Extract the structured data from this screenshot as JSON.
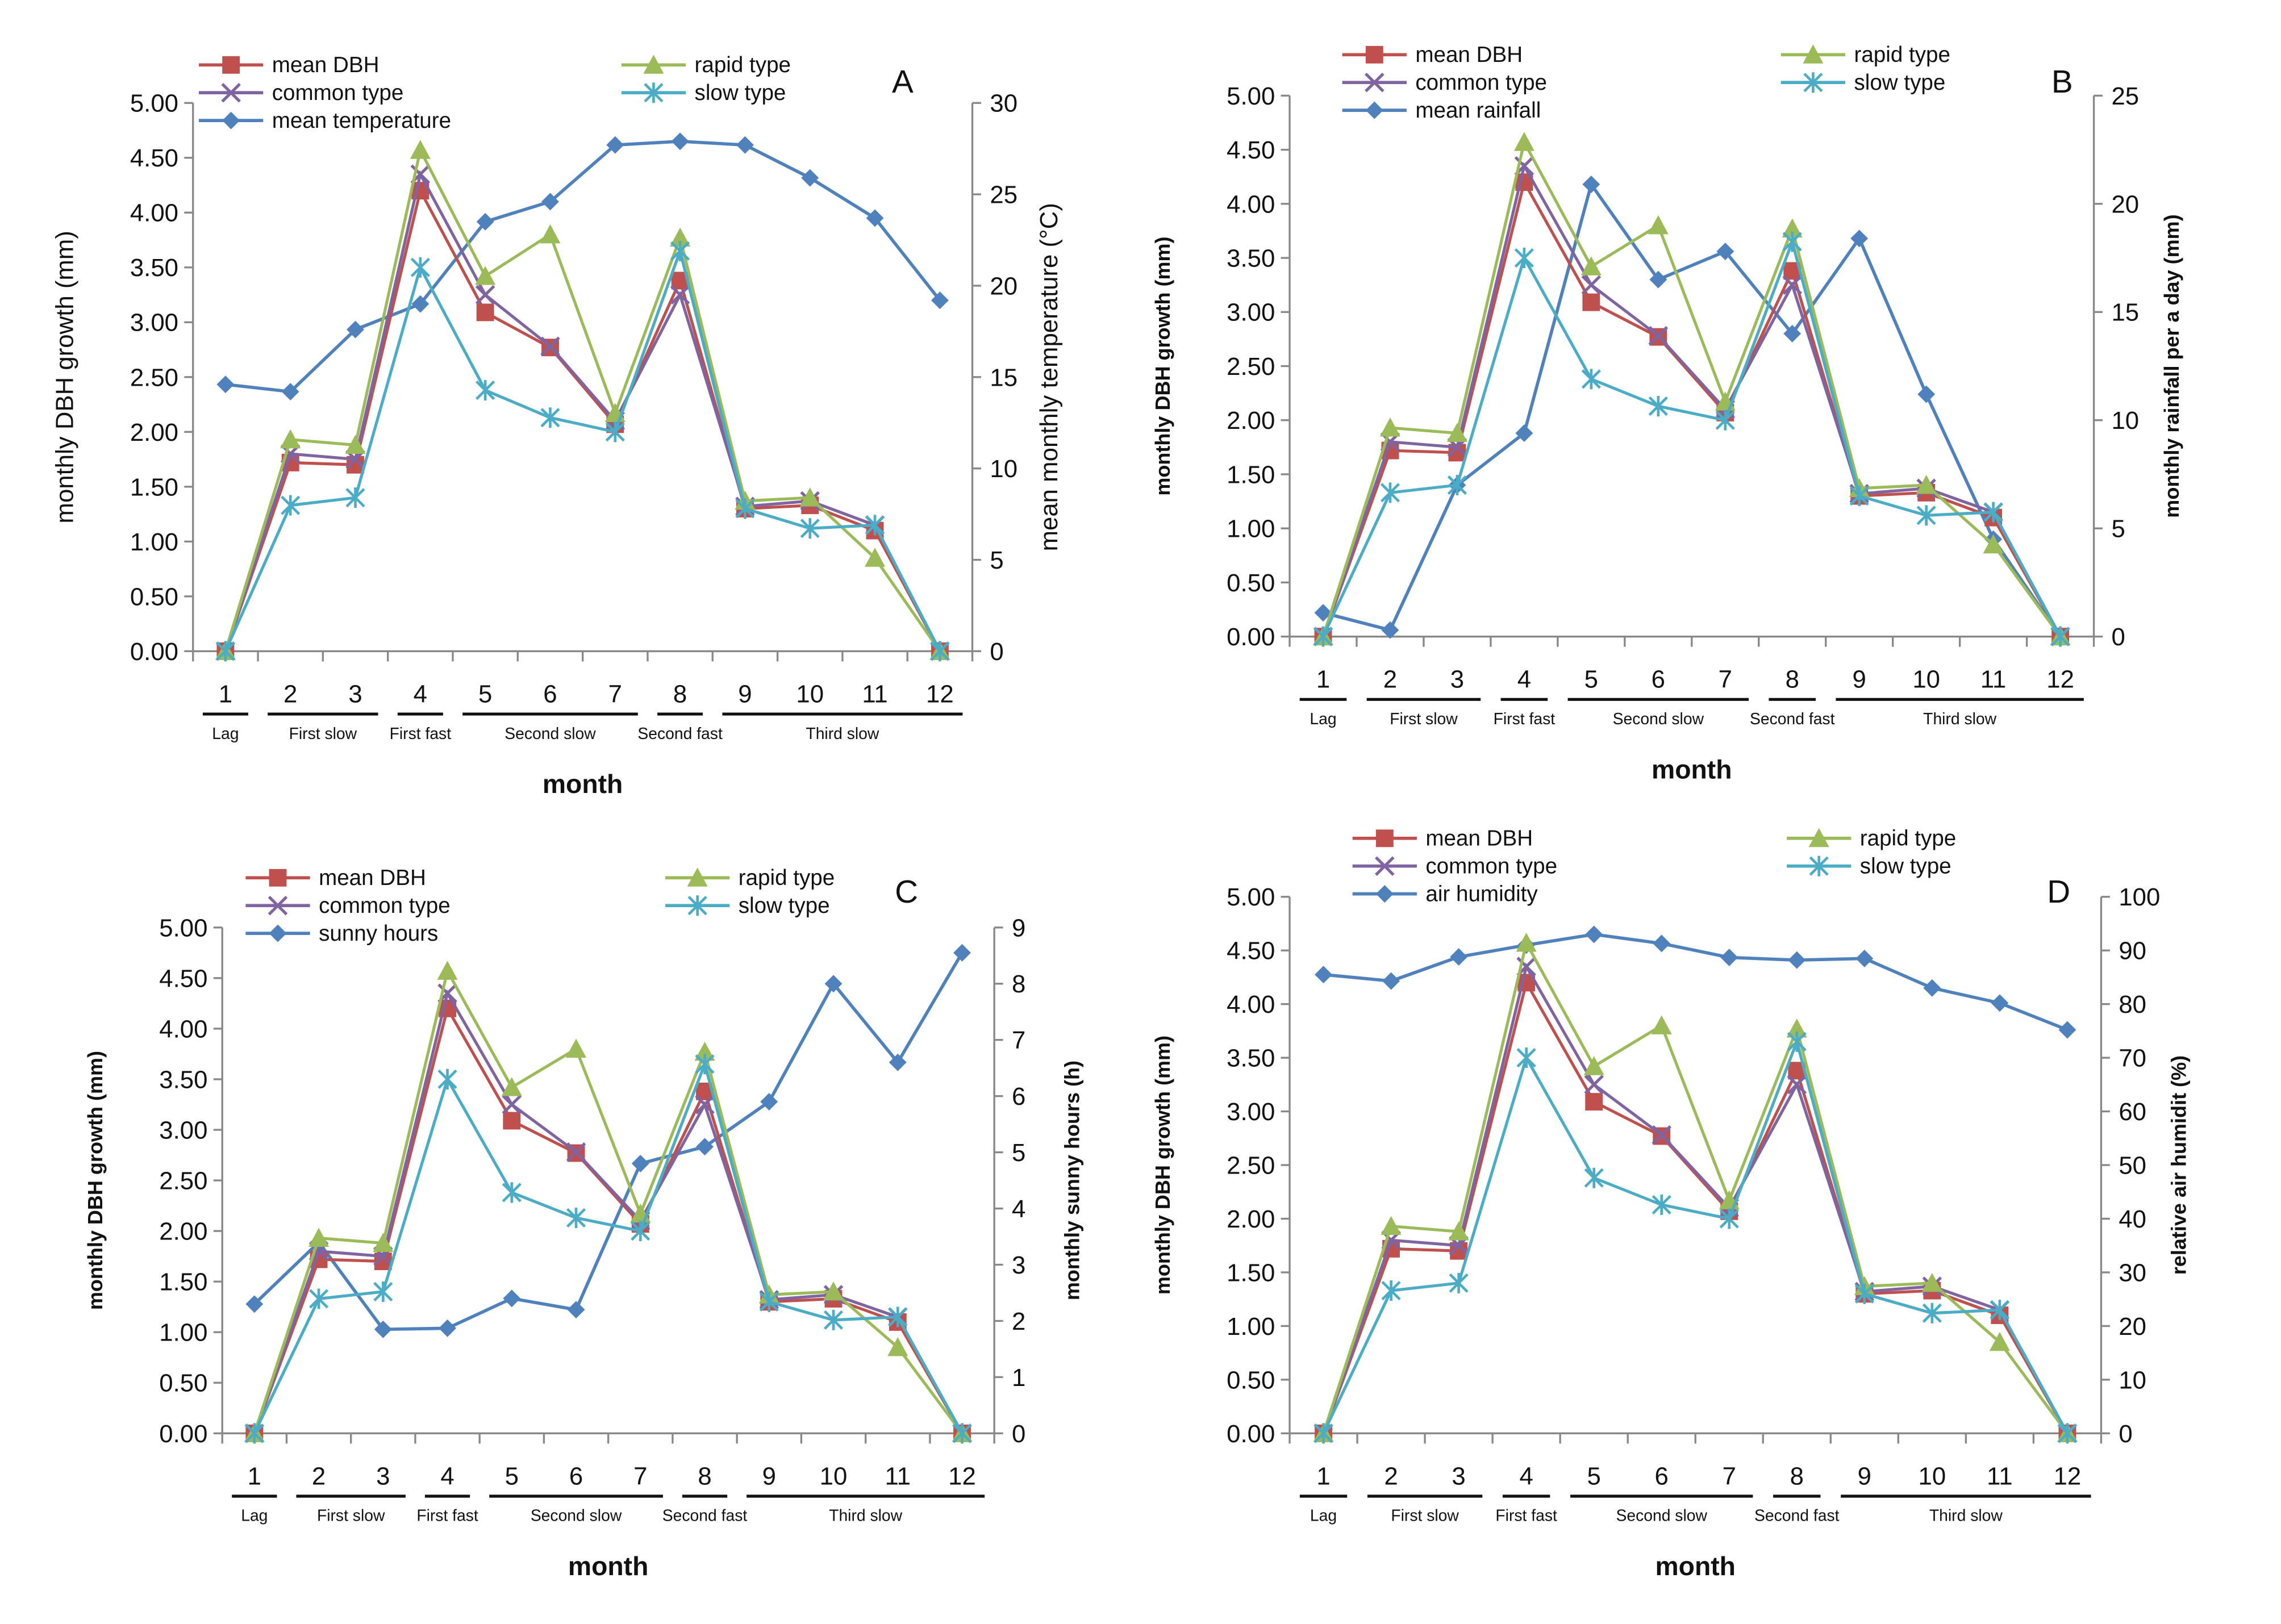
{
  "chart_data": [
    {
      "panel": "A",
      "type": "line",
      "ylabel": "monthly DBH growth (mm)",
      "y2label": "mean monthly temperature (°C)",
      "xlabel": "month",
      "ylim": [
        0,
        5
      ],
      "y2lim": [
        0,
        30
      ],
      "y2ticks": [
        0,
        5,
        10,
        15,
        20,
        25,
        30
      ],
      "env": {
        "name": "mean temperature",
        "values": [
          14.6,
          14.2,
          17.6,
          19.0,
          23.5,
          24.6,
          27.7,
          27.9,
          27.7,
          25.9,
          23.7,
          19.2
        ]
      }
    },
    {
      "panel": "B",
      "type": "line",
      "ylabel": "monthly DBH growth (mm)",
      "y2label": "monthly rainfall per a day (mm)",
      "xlabel": "month",
      "ylim": [
        0,
        5
      ],
      "y2lim": [
        0,
        25
      ],
      "y2ticks": [
        0,
        5,
        10,
        15,
        20,
        25
      ],
      "env": {
        "name": "mean rainfall",
        "values": [
          1.1,
          0.3,
          7.0,
          9.4,
          20.9,
          16.5,
          17.8,
          14.0,
          18.4,
          11.2,
          4.5,
          0
        ]
      }
    },
    {
      "panel": "C",
      "type": "line",
      "ylabel": "monthly DBH growth (mm)",
      "y2label": "monthly sunny hours (h)",
      "xlabel": "month",
      "ylim": [
        0,
        5
      ],
      "y2lim": [
        0,
        9
      ],
      "y2ticks": [
        0,
        1,
        2,
        3,
        4,
        5,
        6,
        7,
        8,
        9
      ],
      "env": {
        "name": "sunny hours",
        "values": [
          2.3,
          3.4,
          1.85,
          1.87,
          2.4,
          2.2,
          4.8,
          5.1,
          5.9,
          8.0,
          6.6,
          8.55
        ]
      }
    },
    {
      "panel": "D",
      "type": "line",
      "ylabel": "monthly DBH growth (mm)",
      "y2label": "relative air humidit (%)",
      "xlabel": "month",
      "ylim": [
        0,
        5
      ],
      "y2lim": [
        0,
        100
      ],
      "y2ticks": [
        0,
        10,
        20,
        30,
        40,
        50,
        60,
        70,
        80,
        90,
        100
      ],
      "env": {
        "name": "air humidity",
        "values": [
          85.5,
          84.3,
          88.8,
          91.0,
          93.0,
          91.3,
          88.7,
          88.2,
          88.5,
          83.0,
          80.2,
          75.2
        ]
      }
    }
  ],
  "shared": {
    "x": [
      "1",
      "2",
      "3",
      "4",
      "5",
      "6",
      "7",
      "8",
      "9",
      "10",
      "11",
      "12"
    ],
    "yticks": [
      "0.00",
      "0.50",
      "1.00",
      "1.50",
      "2.00",
      "2.50",
      "3.00",
      "3.50",
      "4.00",
      "4.50",
      "5.00"
    ],
    "series": [
      {
        "name": "mean DBH",
        "color": "#c0504d",
        "marker": "square",
        "values": [
          0,
          1.72,
          1.7,
          4.2,
          3.09,
          2.77,
          2.07,
          3.38,
          1.3,
          1.33,
          1.1,
          0
        ]
      },
      {
        "name": "common type",
        "color": "#8064a2",
        "marker": "x",
        "values": [
          0,
          1.8,
          1.75,
          4.35,
          3.25,
          2.78,
          2.1,
          3.25,
          1.32,
          1.37,
          1.15,
          0
        ]
      },
      {
        "name": "rapid type",
        "color": "#9bbb59",
        "marker": "triangle",
        "values": [
          0,
          1.93,
          1.88,
          4.57,
          3.42,
          3.8,
          2.17,
          3.77,
          1.37,
          1.4,
          0.85,
          0
        ]
      },
      {
        "name": "slow type",
        "color": "#4bacc6",
        "marker": "star",
        "values": [
          0,
          1.33,
          1.4,
          3.5,
          2.38,
          2.13,
          2.0,
          3.65,
          1.3,
          1.12,
          1.15,
          0
        ]
      }
    ],
    "env_color": "#4f81bd",
    "phases": [
      {
        "label": "Lag",
        "from": 1,
        "to": 1
      },
      {
        "label": "First slow",
        "from": 2,
        "to": 3
      },
      {
        "label": "First fast",
        "from": 4,
        "to": 4
      },
      {
        "label": "Second slow",
        "from": 5,
        "to": 7
      },
      {
        "label": "Second fast",
        "from": 8,
        "to": 8
      },
      {
        "label": "Third slow",
        "from": 9,
        "to": 12
      }
    ]
  }
}
